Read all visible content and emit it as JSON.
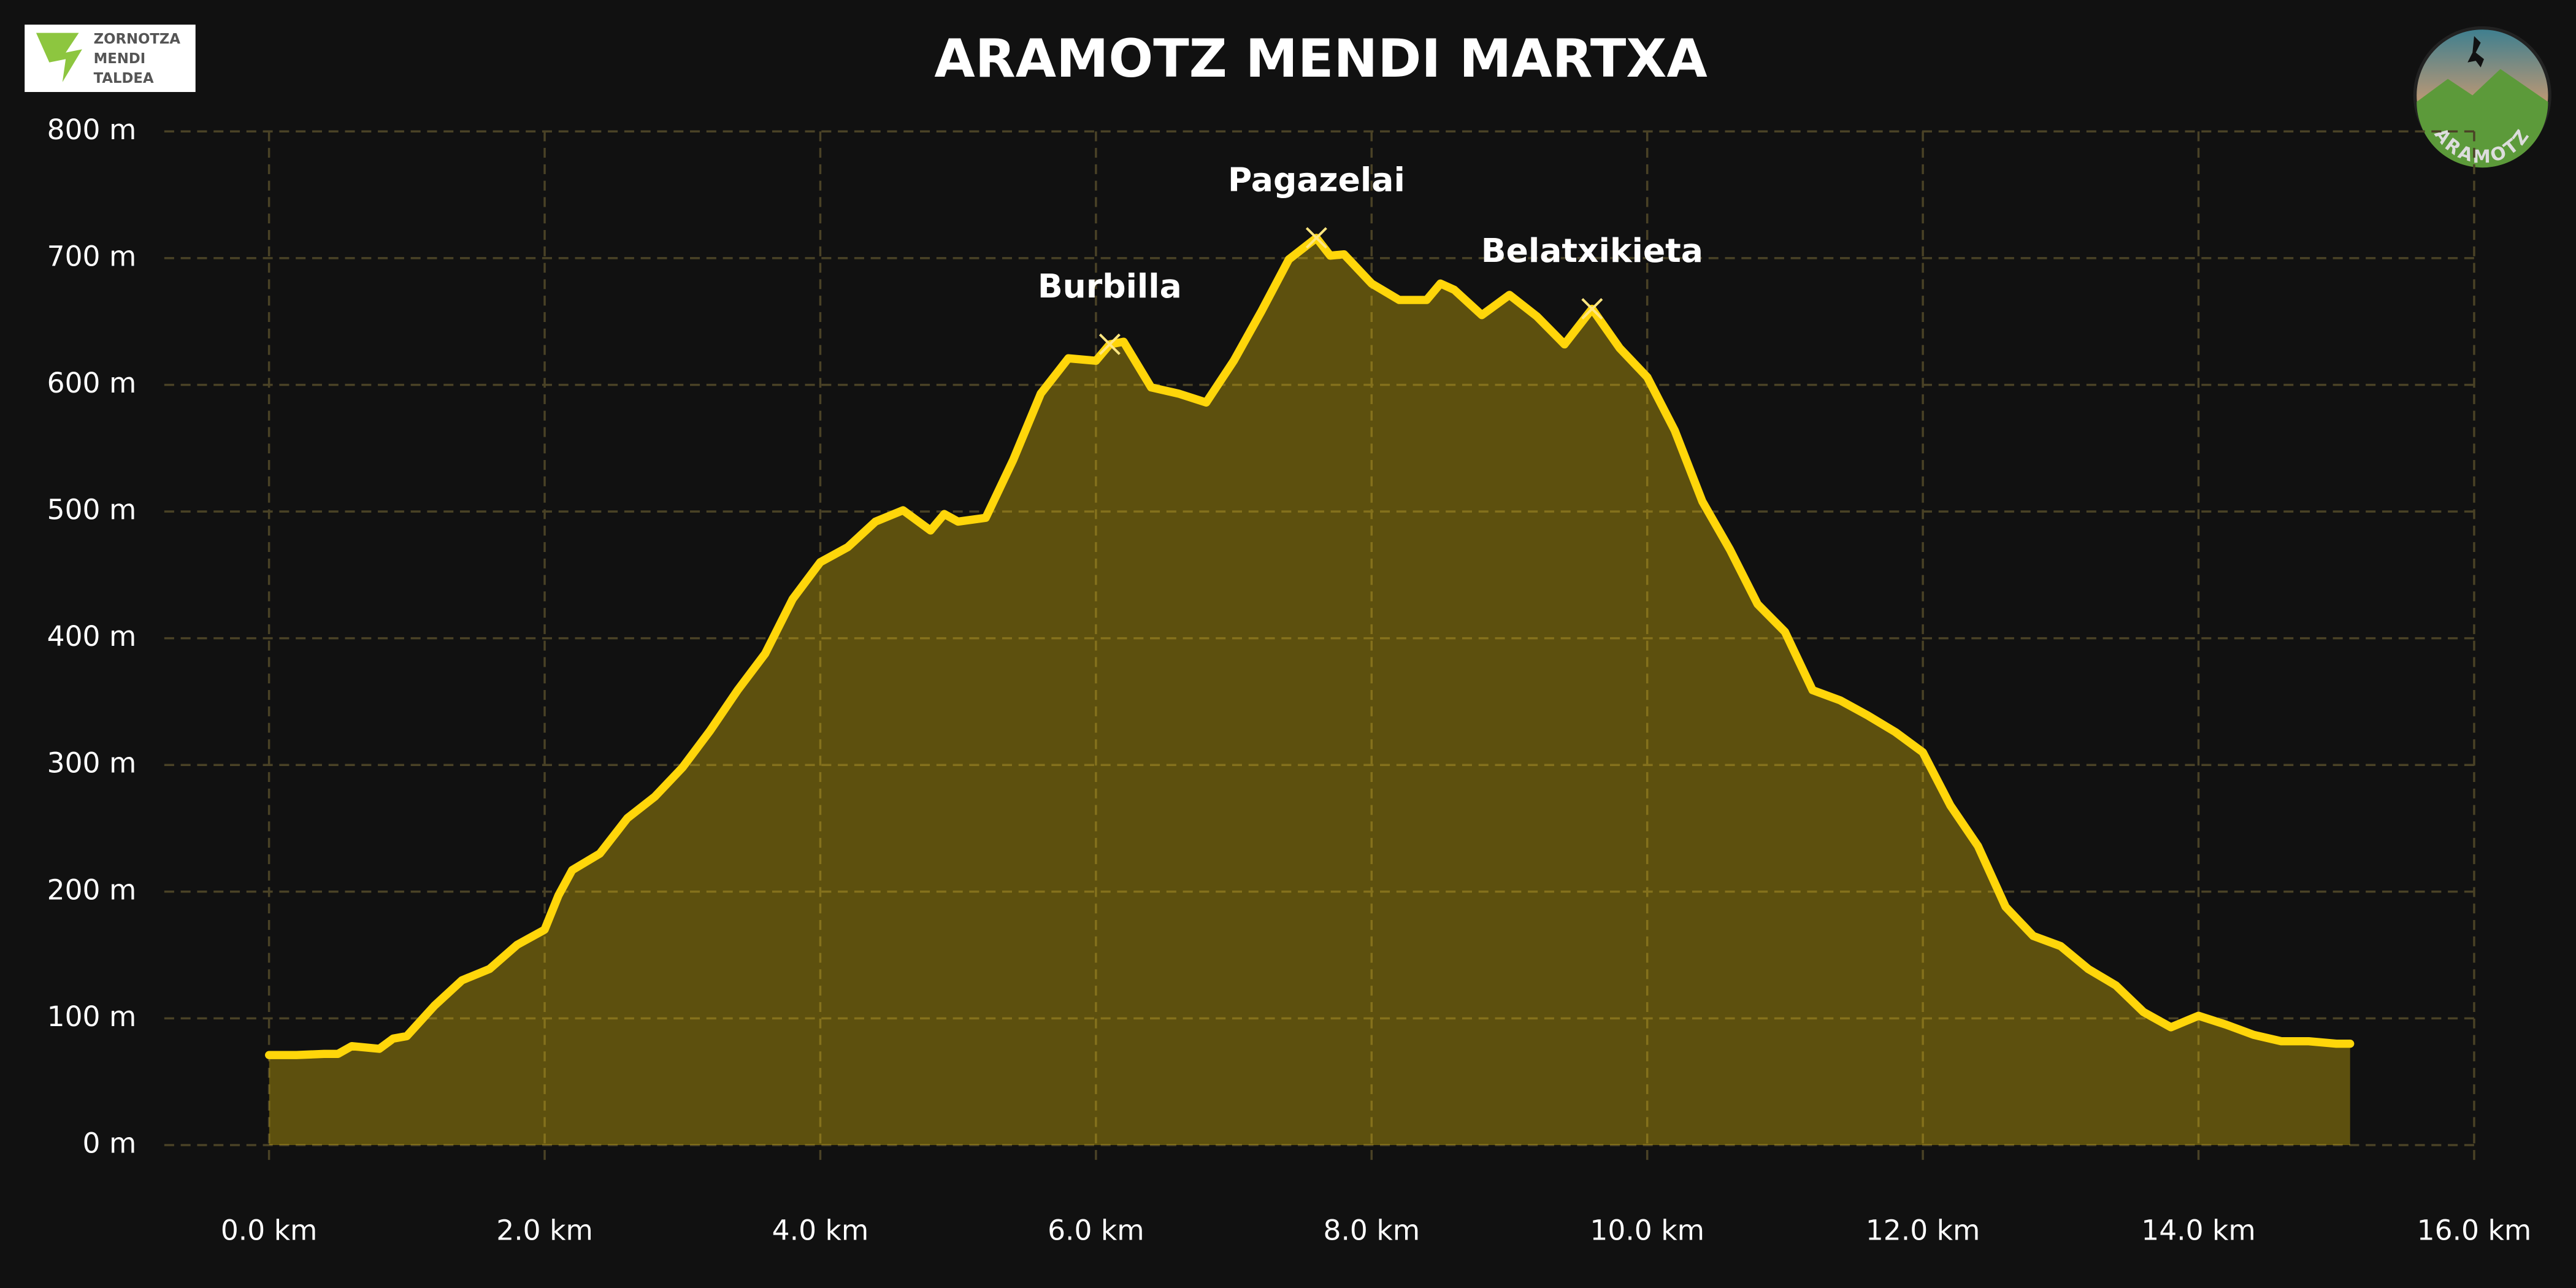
{
  "chart_data": {
    "type": "area-line",
    "title": "ARAMOTZ MENDI MARTXA",
    "x": [
      0,
      0.2,
      0.4,
      0.5,
      0.6,
      0.8,
      0.9,
      1.0,
      1.2,
      1.4,
      1.6,
      1.8,
      2.0,
      2.1,
      2.2,
      2.4,
      2.6,
      2.8,
      3.0,
      3.2,
      3.4,
      3.6,
      3.8,
      4.0,
      4.2,
      4.4,
      4.6,
      4.8,
      4.9,
      5.0,
      5.2,
      5.4,
      5.6,
      5.8,
      6.0,
      6.1,
      6.2,
      6.4,
      6.6,
      6.8,
      7.0,
      7.2,
      7.4,
      7.6,
      7.7,
      7.8,
      8.0,
      8.2,
      8.4,
      8.5,
      8.6,
      8.8,
      9.0,
      9.2,
      9.4,
      9.6,
      9.8,
      10.0,
      10.2,
      10.4,
      10.6,
      10.8,
      11.0,
      11.2,
      11.4,
      11.6,
      11.8,
      12.0,
      12.2,
      12.4,
      12.6,
      12.8,
      13.0,
      13.2,
      13.4,
      13.6,
      13.8,
      14.0,
      14.2,
      14.4,
      14.6,
      14.8,
      15.0,
      15.1
    ],
    "series": [
      {
        "color": "#ffd60a",
        "values": [
          71,
          71,
          72,
          72,
          78,
          76,
          84,
          86,
          110,
          130,
          139,
          158,
          170,
          197,
          217,
          230,
          258,
          275,
          298,
          327,
          359,
          388,
          431,
          460,
          472,
          492,
          501,
          485,
          498,
          492,
          495,
          541,
          593,
          621,
          619,
          632,
          634,
          598,
          593,
          586,
          619,
          658,
          699,
          716,
          702,
          703,
          680,
          667,
          667,
          680,
          675,
          655,
          671,
          654,
          632,
          660,
          629,
          606,
          564,
          508,
          470,
          427,
          405,
          359,
          351,
          339,
          326,
          310,
          268,
          236,
          188,
          165,
          157,
          139,
          126,
          105,
          93,
          102,
          95,
          87,
          82,
          82,
          80,
          80
        ]
      }
    ],
    "peaks": [
      {
        "name": "Burbilla",
        "x": 6.1,
        "y": 632
      },
      {
        "name": "Pagazelai",
        "x": 7.6,
        "y": 716
      },
      {
        "name": "Belatxikieta",
        "x": 9.6,
        "y": 660
      }
    ],
    "xlim": [
      -0.76,
      16
    ],
    "ylim": [
      0,
      800
    ],
    "xticks": [
      {
        "value": 0,
        "label": "0.0 km"
      },
      {
        "value": 2,
        "label": "2.0 km"
      },
      {
        "value": 4,
        "label": "4.0 km"
      },
      {
        "value": 6,
        "label": "6.0 km"
      },
      {
        "value": 8,
        "label": "8.0 km"
      },
      {
        "value": 10,
        "label": "10.0 km"
      },
      {
        "value": 12,
        "label": "12.0 km"
      },
      {
        "value": 14,
        "label": "14.0 km"
      },
      {
        "value": 16,
        "label": "16.0 km"
      }
    ],
    "yticks": [
      {
        "value": 0,
        "label": "0 m"
      },
      {
        "value": 100,
        "label": "100 m"
      },
      {
        "value": 200,
        "label": "200 m"
      },
      {
        "value": 300,
        "label": "300 m"
      },
      {
        "value": 400,
        "label": "400 m"
      },
      {
        "value": 500,
        "label": "500 m"
      },
      {
        "value": 600,
        "label": "600 m"
      },
      {
        "value": 700,
        "label": "700 m"
      },
      {
        "value": 800,
        "label": "800 m"
      }
    ],
    "grid": true
  },
  "logos": {
    "left": [
      "ZORNOTZA",
      "MENDI",
      "TALDEA"
    ],
    "right": "ARAMOTZ"
  }
}
